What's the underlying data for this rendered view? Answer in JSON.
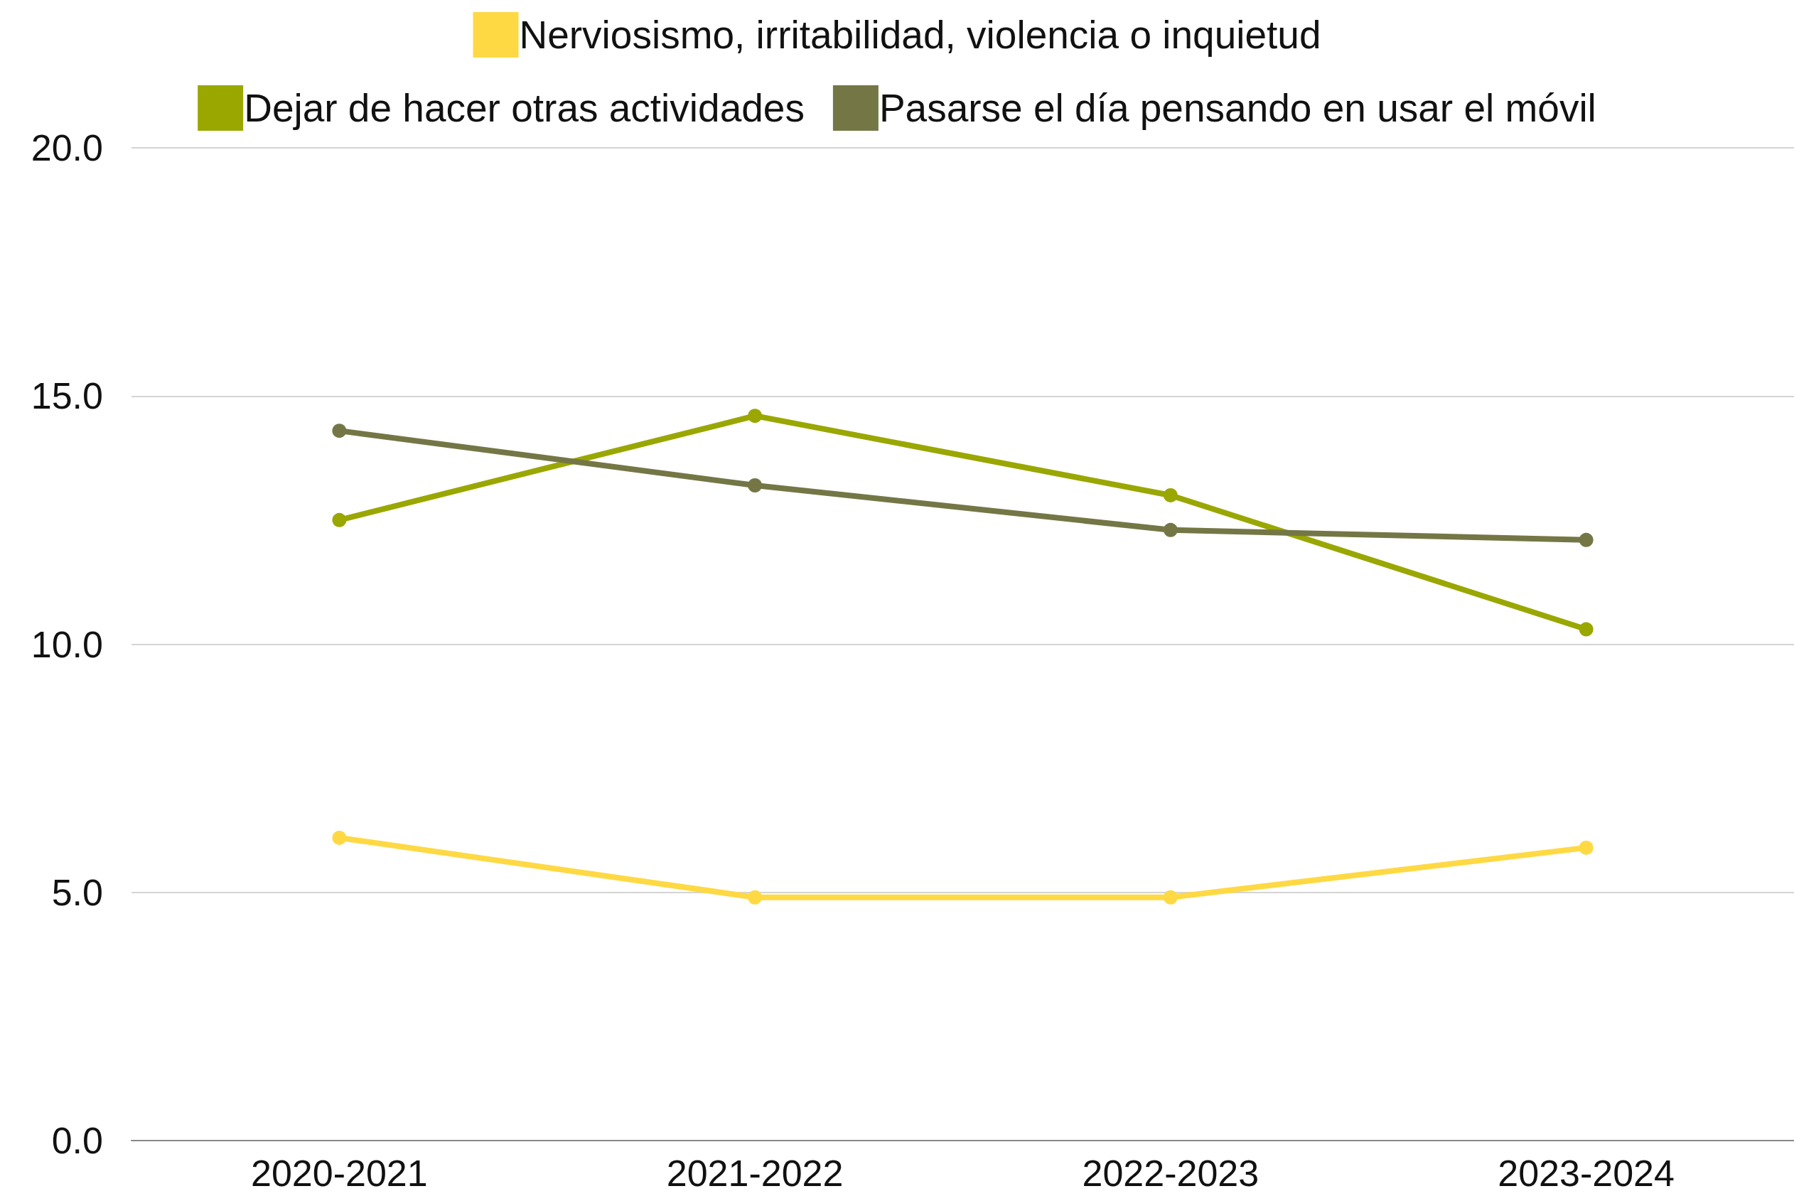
{
  "chart_data": {
    "type": "line",
    "categories": [
      "2020-2021",
      "2021-2022",
      "2022-2023",
      "2023-2024"
    ],
    "series": [
      {
        "name": "Nerviosismo, irritabilidad, violencia o inquietud",
        "color": "#fed944",
        "values": [
          6.1,
          4.9,
          4.9,
          5.9
        ]
      },
      {
        "name": "Dejar de hacer otras actividades",
        "color": "#9aa700",
        "values": [
          12.5,
          14.6,
          13.0,
          10.3
        ]
      },
      {
        "name": "Pasarse el día pensando en usar el móvil",
        "color": "#747745",
        "values": [
          14.3,
          13.2,
          12.3,
          12.1
        ]
      }
    ],
    "ylim": [
      0,
      20
    ],
    "yticks": [
      {
        "value": 0,
        "label": "0.0"
      },
      {
        "value": 5,
        "label": "5.0"
      },
      {
        "value": 10,
        "label": "10.0"
      },
      {
        "value": 15,
        "label": "15.0"
      },
      {
        "value": 20,
        "label": "20.0"
      }
    ],
    "grid": "y",
    "legend": "top",
    "marker": "circle",
    "line_style": "solid"
  }
}
